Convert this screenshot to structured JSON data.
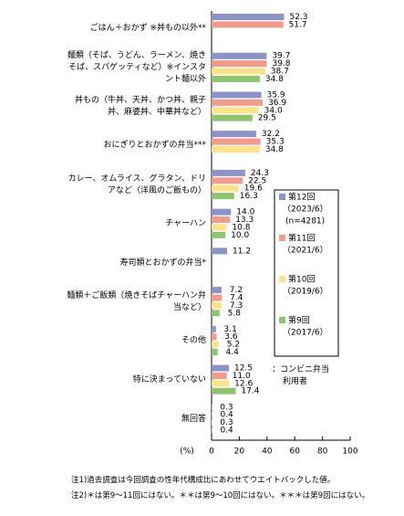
{
  "chart_data": {
    "type": "hbar",
    "categories": [
      "ごはん＋おかず ※丼もの以外**",
      "麺類（そば、うどん、ラーメン、焼きそば、スパゲッティなど）※インスタント麺以外",
      "丼もの（牛丼、天丼、かつ丼、親子丼、麻婆丼、中華丼など）",
      "おにぎりとおかずの弁当***",
      "カレー、オムライス、グラタン、ドリアなど（洋風のご飯もの）",
      "チャーハン",
      "寿司類とおかずの弁当*",
      "麺類＋ご飯類（焼きそばチャーハン弁当など）",
      "その他",
      "特に決まっていない",
      "無回答"
    ],
    "series": [
      {
        "name": "第12回",
        "period": "（2023/6）",
        "n": "(n=4281)",
        "color": "#8b93c9",
        "values": [
          52.3,
          39.7,
          35.9,
          32.2,
          24.3,
          14.0,
          11.2,
          7.2,
          3.1,
          12.5,
          0.3
        ],
        "value_labels": [
          "52.3",
          "39.7",
          "35.9",
          "32.2",
          "24.3",
          "14.0",
          "11.2",
          "7.2",
          "3.1",
          "12.5",
          "0.3"
        ]
      },
      {
        "name": "第11回",
        "period": "（2021/6）",
        "color": "#f39a8a",
        "values": [
          51.7,
          39.8,
          36.9,
          35.3,
          22.5,
          13.3,
          null,
          7.4,
          3.6,
          11.0,
          0.4
        ],
        "value_labels": [
          "51.7",
          "39.8",
          "36.9",
          "35.3",
          "22.5",
          "13.3",
          null,
          "7.4",
          "3.6",
          "11.0",
          "0.4"
        ]
      },
      {
        "name": "第10回",
        "period": "（2019/6）",
        "color": "#fde28a",
        "values": [
          null,
          38.7,
          34.0,
          34.8,
          19.6,
          10.8,
          null,
          7.3,
          5.2,
          12.6,
          0.3
        ],
        "value_labels": [
          null,
          "38.7",
          "34.0",
          "34.8",
          "19.6",
          "10.8",
          null,
          "7.3",
          "5.2",
          "12.6",
          "0.3"
        ]
      },
      {
        "name": "第9回",
        "period": "（2017/6）",
        "color": "#8fc56e",
        "values": [
          null,
          34.8,
          29.5,
          null,
          16.3,
          10.0,
          null,
          5.8,
          4.4,
          17.4,
          0.4
        ],
        "value_labels": [
          null,
          "34.8",
          "29.5",
          null,
          "16.3",
          "10.0",
          null,
          "5.8",
          "4.4",
          "17.4",
          "0.4"
        ]
      }
    ],
    "xlim": [
      0,
      100
    ],
    "xticks": [
      0,
      20,
      40,
      60,
      80,
      100
    ],
    "x_unit": "(%)",
    "grid": false,
    "legend_note": "：コンビニ弁当利用者",
    "notes": [
      "注1)過去調査は今回調査の性年代構成比にあわせてウエイトバックした値。",
      "注2)＊は第9～11回にはない。＊＊は第9～10回にはない。＊＊＊は第9回にはない。"
    ]
  }
}
